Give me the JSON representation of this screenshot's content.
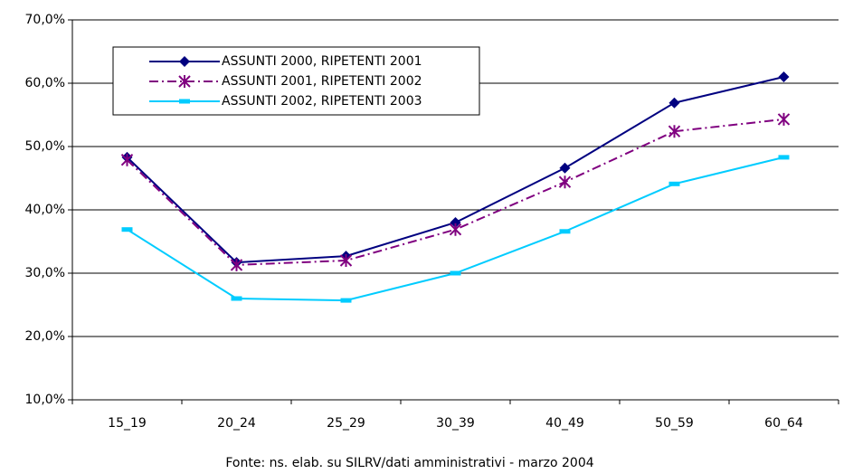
{
  "chart_data": {
    "type": "line",
    "categories": [
      "15_19",
      "20_24",
      "25_29",
      "30_39",
      "40_49",
      "50_59",
      "60_64"
    ],
    "series": [
      {
        "name": "ASSUNTI 2000, RIPETENTI 2001",
        "color": "#000080",
        "marker": "diamond",
        "dash": "solid",
        "values": [
          48.3,
          31.7,
          32.7,
          38.0,
          46.6,
          56.9,
          61.0
        ]
      },
      {
        "name": "ASSUNTI 2001, RIPETENTI 2002",
        "color": "#800080",
        "marker": "asterisk",
        "dash": "dashdot",
        "values": [
          47.9,
          31.3,
          32.0,
          36.9,
          44.4,
          52.4,
          54.3
        ]
      },
      {
        "name": "ASSUNTI 2002, RIPETENTI 2003",
        "color": "#00ccff",
        "marker": "dash",
        "dash": "solid",
        "values": [
          36.9,
          26.0,
          25.7,
          30.0,
          36.6,
          44.1,
          48.3
        ]
      }
    ],
    "ylim": [
      10,
      70
    ],
    "yticks": [
      {
        "value": 10,
        "label": "10,0%"
      },
      {
        "value": 20,
        "label": "20,0%"
      },
      {
        "value": 30,
        "label": "30,0%"
      },
      {
        "value": 40,
        "label": "40,0%"
      },
      {
        "value": 50,
        "label": "50,0%"
      },
      {
        "value": 60,
        "label": "60,0%"
      },
      {
        "value": 70,
        "label": "70,0%"
      }
    ],
    "grid": true,
    "legend": "upper-left",
    "source": "Fonte: ns. elab. su SILRV/dati amministrativi - marzo 2004"
  }
}
